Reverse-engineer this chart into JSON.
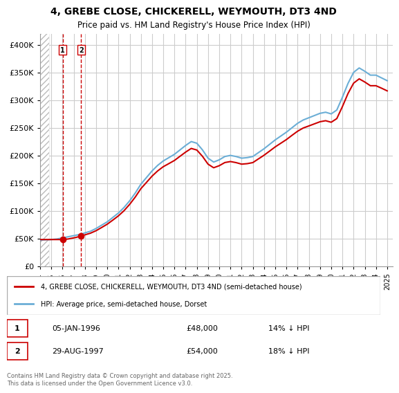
{
  "title_line1": "4, GREBE CLOSE, CHICKERELL, WEYMOUTH, DT3 4ND",
  "title_line2": "Price paid vs. HM Land Registry's House Price Index (HPI)",
  "ylabel_ticks": [
    "£0",
    "£50K",
    "£100K",
    "£150K",
    "£200K",
    "£250K",
    "£300K",
    "£350K",
    "£400K"
  ],
  "ytick_values": [
    0,
    50000,
    100000,
    150000,
    200000,
    250000,
    300000,
    350000,
    400000
  ],
  "ylim": [
    0,
    420000
  ],
  "xlim_start": 1994.0,
  "xlim_end": 2025.5,
  "sale1_date": "05-JAN-1996",
  "sale1_price": 48000,
  "sale1_hpi": "14% ↓ HPI",
  "sale1_x": 1996.02,
  "sale2_date": "29-AUG-1997",
  "sale2_price": 54000,
  "sale2_hpi": "18% ↓ HPI",
  "sale2_x": 1997.66,
  "hpi_color": "#6baed6",
  "price_color": "#cc0000",
  "marker_color": "#cc0000",
  "vline_color": "#cc0000",
  "legend_label_price": "4, GREBE CLOSE, CHICKERELL, WEYMOUTH, DT3 4ND (semi-detached house)",
  "legend_label_hpi": "HPI: Average price, semi-detached house, Dorset",
  "footer": "Contains HM Land Registry data © Crown copyright and database right 2025.\nThis data is licensed under the Open Government Licence v3.0.",
  "bg_hatch_color": "#d0d0d0",
  "grid_color": "#cccccc"
}
